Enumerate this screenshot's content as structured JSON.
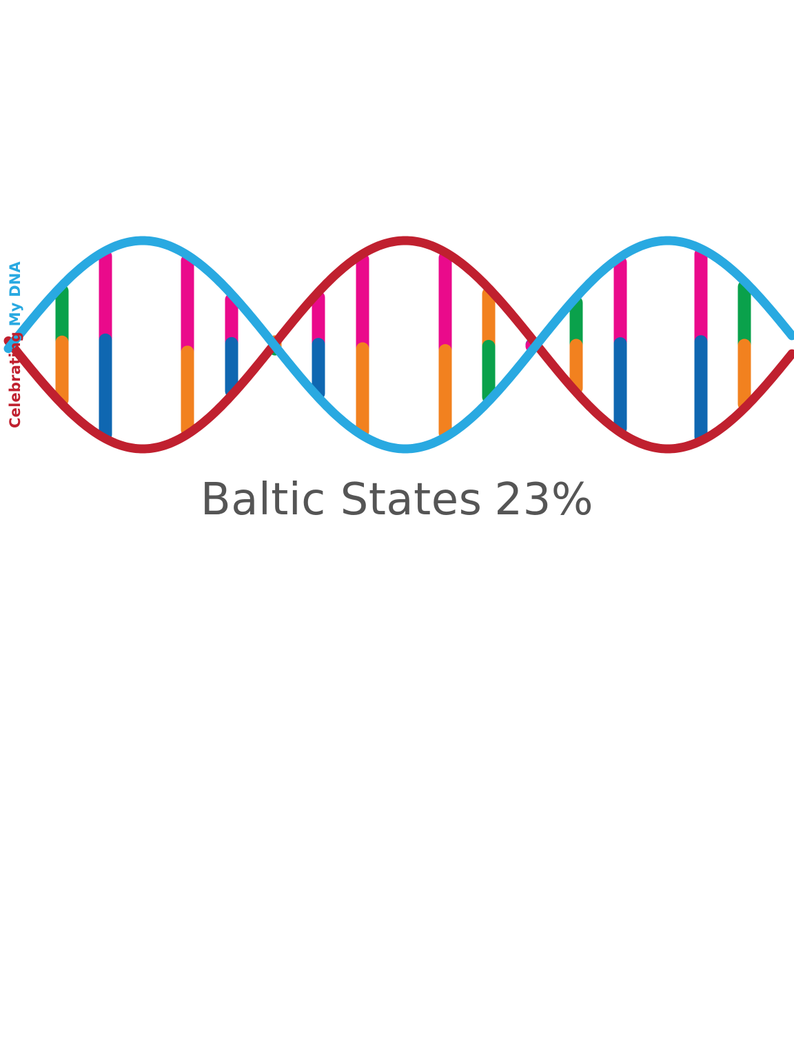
{
  "branding": {
    "word_red": "Celebrating",
    "word_blue": "My DNA"
  },
  "caption": {
    "region": "Baltic States",
    "percent": "23%"
  },
  "colors": {
    "strand_red": "#c0202f",
    "strand_blue": "#29a9e1",
    "base_green": "#0aa14b",
    "base_orange": "#f2811f",
    "base_magenta": "#ea0a8b",
    "base_blue": "#0f67b1",
    "text_gray": "#555555"
  }
}
